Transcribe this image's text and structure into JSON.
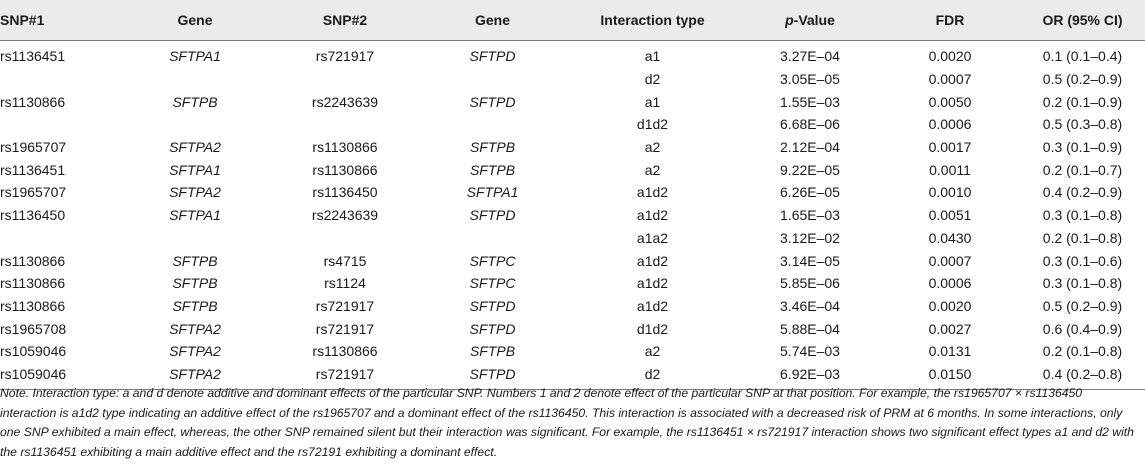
{
  "table": {
    "headers": {
      "snp1": "SNP#1",
      "gene1": "Gene",
      "snp2": "SNP#2",
      "gene2": "Gene",
      "interaction": "Interaction type",
      "pvalue_p": "p",
      "pvalue_rest": "-Value",
      "fdr": "FDR",
      "or": "OR (95% CI)"
    },
    "rows": [
      [
        "rs1136451",
        "SFTPA1",
        "rs721917",
        "SFTPD",
        "a1",
        "3.27E–04",
        "0.0020",
        "0.1 (0.1–0.4)"
      ],
      [
        "",
        "",
        "",
        "",
        "d2",
        "3.05E–05",
        "0.0007",
        "0.5 (0.2–0.9)"
      ],
      [
        "rs1130866",
        "SFTPB",
        "rs2243639",
        "SFTPD",
        "a1",
        "1.55E–03",
        "0.0050",
        "0.2 (0.1–0.9)"
      ],
      [
        "",
        "",
        "",
        "",
        "d1d2",
        "6.68E–06",
        "0.0006",
        "0.5 (0.3–0.8)"
      ],
      [
        "rs1965707",
        "SFTPA2",
        "rs1130866",
        "SFTPB",
        "a2",
        "2.12E–04",
        "0.0017",
        "0.3 (0.1–0.9)"
      ],
      [
        "rs1136451",
        "SFTPA1",
        "rs1130866",
        "SFTPB",
        "a2",
        "9.22E–05",
        "0.0011",
        "0.2 (0.1–0.7)"
      ],
      [
        "rs1965707",
        "SFTPA2",
        "rs1136450",
        "SFTPA1",
        "a1d2",
        "6.26E–05",
        "0.0010",
        "0.4 (0.2–0.9)"
      ],
      [
        "rs1136450",
        "SFTPA1",
        "rs2243639",
        "SFTPD",
        "a1d2",
        "1.65E–03",
        "0.0051",
        "0.3 (0.1–0.8)"
      ],
      [
        "",
        "",
        "",
        "",
        "a1a2",
        "3.12E–02",
        "0.0430",
        "0.2 (0.1–0.8)"
      ],
      [
        "rs1130866",
        "SFTPB",
        "rs4715",
        "SFTPC",
        "a1d2",
        "3.14E–05",
        "0.0007",
        "0.3 (0.1–0.6)"
      ],
      [
        "rs1130866",
        "SFTPB",
        "rs1124",
        "SFTPC",
        "a1d2",
        "5.85E–06",
        "0.0006",
        "0.3 (0.1–0.8)"
      ],
      [
        "rs1130866",
        "SFTPB",
        "rs721917",
        "SFTPD",
        "a1d2",
        "3.46E–04",
        "0.0020",
        "0.5 (0.2–0.9)"
      ],
      [
        "rs1965708",
        "SFTPA2",
        "rs721917",
        "SFTPD",
        "d1d2",
        "5.88E–04",
        "0.0027",
        "0.6 (0.4–0.9)"
      ],
      [
        "rs1059046",
        "SFTPA2",
        "rs1130866",
        "SFTPB",
        "a2",
        "5.74E–03",
        "0.0131",
        "0.2 (0.1–0.8)"
      ],
      [
        "rs1059046",
        "SFTPA2",
        "rs721917",
        "SFTPD",
        "d2",
        "6.92E–03",
        "0.0150",
        "0.4 (0.2–0.8)"
      ]
    ]
  },
  "note": "Note. Interaction type: a and d denote additive and dominant effects of the particular SNP. Numbers 1 and 2 denote effect of the particular SNP at that position. For example, the rs1965707 × rs1136450 interaction is a1d2 type indicating an additive effect of the rs1965707 and a dominant effect of the rs1136450. This interaction is associated with a decreased risk of PRM at 6 months. In some interactions, only one SNP exhibited a main effect, whereas, the other SNP remained silent but their interaction was significant. For example, the rs1136451 × rs721917 interaction shows two significant effect types a1 and d2 with the rs1136451 exhibiting a main additive effect and the rs72191 exhibiting a dominant effect."
}
